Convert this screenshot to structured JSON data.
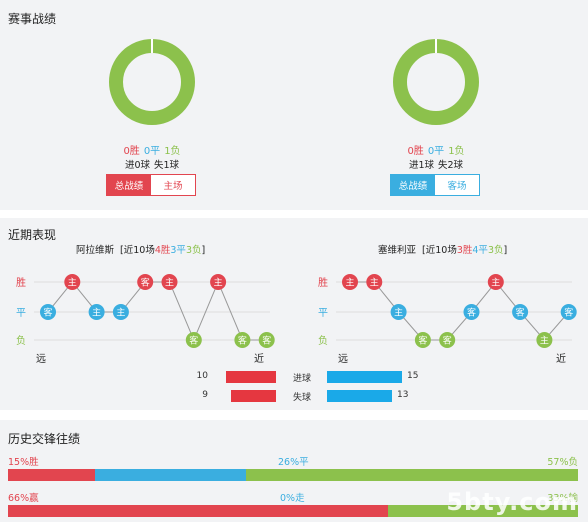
{
  "colors": {
    "win": "#e2454f",
    "draw": "#3aaee0",
    "loss": "#8cc14c",
    "goal_bar": "#e53740",
    "concede_bar": "#1aa9e8"
  },
  "record": {
    "title": "赛事战绩",
    "home": {
      "win": "0胜",
      "draw": "0平",
      "loss": "1负",
      "win_n": 0,
      "draw_n": 0,
      "loss_n": 1,
      "goals_for": "进0球",
      "goals_against": "失1球",
      "tab_total": "总战绩",
      "tab_venue": "主场"
    },
    "away": {
      "win": "0胜",
      "draw": "0平",
      "loss": "1负",
      "win_n": 0,
      "draw_n": 0,
      "loss_n": 1,
      "goals_for": "进1球",
      "goals_against": "失2球",
      "tab_total": "总战绩",
      "tab_venue": "客场"
    }
  },
  "recent": {
    "title": "近期表现",
    "row_labels": {
      "win": "胜",
      "draw": "平",
      "loss": "负"
    },
    "axis": {
      "far": "远",
      "near": "近"
    },
    "home": {
      "name": "阿拉维斯",
      "summary_prefix": "[近10场",
      "wins": "4胜",
      "draws": "3平",
      "losses": "3负",
      "summary_suffix": "]",
      "games": [
        {
          "r": "D",
          "v": "客"
        },
        {
          "r": "W",
          "v": "主"
        },
        {
          "r": "D",
          "v": "主"
        },
        {
          "r": "D",
          "v": "主"
        },
        {
          "r": "W",
          "v": "客"
        },
        {
          "r": "W",
          "v": "主"
        },
        {
          "r": "L",
          "v": "客"
        },
        {
          "r": "W",
          "v": "主"
        },
        {
          "r": "L",
          "v": "客"
        },
        {
          "r": "L",
          "v": "客"
        }
      ]
    },
    "away": {
      "name": "塞维利亚",
      "summary_prefix": "[近10场",
      "wins": "3胜",
      "draws": "4平",
      "losses": "3负",
      "summary_suffix": "]",
      "games": [
        {
          "r": "W",
          "v": "主"
        },
        {
          "r": "W",
          "v": "主"
        },
        {
          "r": "D",
          "v": "主"
        },
        {
          "r": "L",
          "v": "客"
        },
        {
          "r": "L",
          "v": "客"
        },
        {
          "r": "D",
          "v": "客"
        },
        {
          "r": "W",
          "v": "主"
        },
        {
          "r": "D",
          "v": "客"
        },
        {
          "r": "L",
          "v": "主"
        },
        {
          "r": "D",
          "v": "客"
        }
      ]
    },
    "goals": {
      "label": "进球",
      "home": 10,
      "away": 15
    },
    "conceded": {
      "label": "失球",
      "home": 9,
      "away": 13
    }
  },
  "history": {
    "title": "历史交锋往绩",
    "row1": {
      "left": "15%胜",
      "mid": "26%平",
      "right": "57%负",
      "p_left": 15,
      "p_mid": 26,
      "p_right": 57
    },
    "row2": {
      "left": "66%赢",
      "mid": "0%走",
      "right": "33%输",
      "p_left": 66,
      "p_mid": 0,
      "p_right": 33
    }
  }
}
